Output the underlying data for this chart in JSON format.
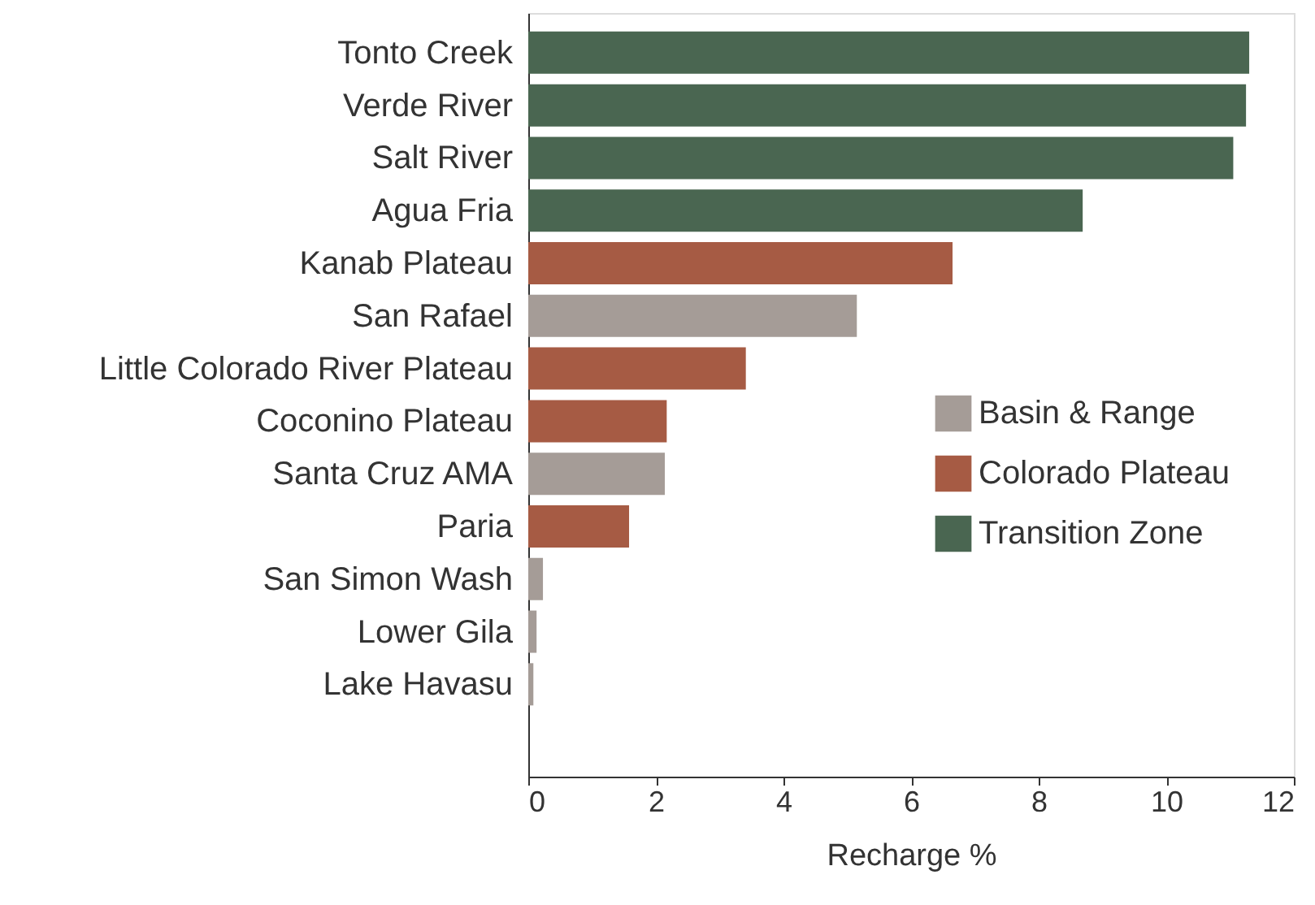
{
  "chart_data": {
    "type": "bar",
    "orientation": "horizontal",
    "xlabel": "Recharge %",
    "categories": [
      "Tonto Creek",
      "Verde River",
      "Salt River",
      "Agua Fria",
      "Kanab Plateau",
      "San Rafael",
      "Little Colorado River Plateau",
      "Coconino Plateau",
      "Santa Cruz AMA",
      "Paria",
      "San Simon Wash",
      "Lower Gila",
      "Lake Havasu"
    ],
    "series": [
      {
        "name": "Basin & Range",
        "color": "#a59c97",
        "values": [
          null,
          null,
          null,
          null,
          null,
          5.15,
          null,
          null,
          2.14,
          null,
          0.23,
          0.13,
          0.08
        ]
      },
      {
        "name": "Colorado Plateau",
        "color": "#a65b44",
        "values": [
          null,
          null,
          null,
          null,
          6.65,
          null,
          3.41,
          2.17,
          null,
          1.58,
          null,
          null,
          null
        ]
      },
      {
        "name": "Transition Zone",
        "color": "#4a6651",
        "values": [
          11.3,
          11.25,
          11.05,
          8.69,
          null,
          null,
          null,
          null,
          null,
          null,
          null,
          null,
          null
        ]
      }
    ],
    "xlim": [
      0,
      12
    ],
    "xticks": [
      0,
      2,
      4,
      6,
      8,
      10,
      12
    ],
    "legend": "right",
    "grid": false
  }
}
